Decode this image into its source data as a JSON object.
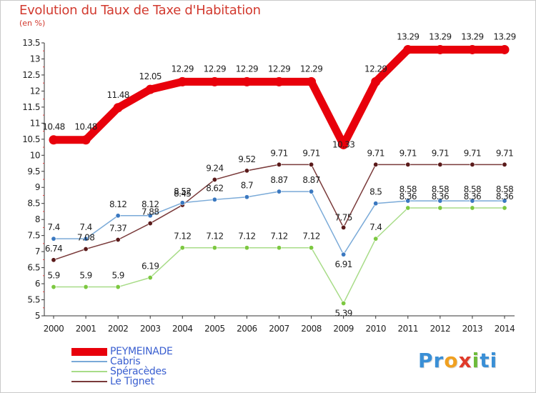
{
  "title": "Evolution du Taux de Taxe d'Habitation",
  "subtitle": "(en %)",
  "logo": {
    "text": "Proxiti",
    "parts": [
      {
        "text": "Pr",
        "color": "#3a8fd6"
      },
      {
        "text": "o",
        "color": "#f0a020"
      },
      {
        "text": "x",
        "color": "#e03a2a"
      },
      {
        "text": "i",
        "color": "#6dbb3a"
      },
      {
        "text": "ti",
        "color": "#3a8fd6"
      }
    ]
  },
  "chart_data": {
    "type": "line",
    "x": [
      "2000",
      "2001",
      "2002",
      "2003",
      "2004",
      "2005",
      "2006",
      "2007",
      "2008",
      "2009",
      "2010",
      "2011",
      "2012",
      "2013",
      "2014"
    ],
    "ylim": [
      5,
      13.5
    ],
    "yticks": [
      "5",
      "5.5",
      "6",
      "6.5",
      "7",
      "7.5",
      "8",
      "8.5",
      "9",
      "9.5",
      "10",
      "10.5",
      "11",
      "11.5",
      "12",
      "12.5",
      "13",
      "13.5"
    ],
    "grid": false,
    "legend_position": "bottom-left",
    "series": [
      {
        "name": "PEYMEINADE",
        "color": "#e8000b",
        "marker_color": "#e8000b",
        "values": [
          10.48,
          10.48,
          11.48,
          12.05,
          12.29,
          12.29,
          12.29,
          12.29,
          12.29,
          10.33,
          12.29,
          13.29,
          13.29,
          13.29,
          13.29
        ],
        "labels": [
          "10.48",
          "10.48",
          "11.48",
          "12.05",
          "12.29",
          "12.29",
          "12.29",
          "12.29",
          "12.29",
          "10.33",
          "12.29",
          "13.29",
          "13.29",
          "13.29",
          "13.29"
        ]
      },
      {
        "name": "Cabris",
        "color": "#7aaad8",
        "marker_color": "#3a78c0",
        "values": [
          7.4,
          7.4,
          8.12,
          8.12,
          8.52,
          8.62,
          8.7,
          8.87,
          8.87,
          6.91,
          8.5,
          8.58,
          8.58,
          8.58,
          8.58
        ],
        "labels": [
          "7.4",
          "7.4",
          "8.12",
          "8.12",
          "8.52",
          "8.62",
          "8.7",
          "8.87",
          "8.87",
          "6.91",
          "8.5",
          "8.58",
          "8.58",
          "8.58",
          "8.58"
        ]
      },
      {
        "name": "Spéracèdes",
        "color": "#a8dc88",
        "marker_color": "#7cc840",
        "values": [
          5.9,
          5.9,
          5.9,
          6.19,
          7.12,
          7.12,
          7.12,
          7.12,
          7.12,
          5.39,
          7.4,
          8.36,
          8.36,
          8.36,
          8.36
        ],
        "labels": [
          "5.9",
          "5.9",
          "5.9",
          "6.19",
          "7.12",
          "7.12",
          "7.12",
          "7.12",
          "7.12",
          "5.39",
          "7.4",
          "8.36",
          "8.36",
          "8.36",
          "8.36"
        ]
      },
      {
        "name": "Le Tignet",
        "color": "#7a3a3a",
        "marker_color": "#5a1a1a",
        "values": [
          6.74,
          7.08,
          7.37,
          7.88,
          8.45,
          9.24,
          9.52,
          9.71,
          9.71,
          7.75,
          9.71,
          9.71,
          9.71,
          9.71,
          9.71
        ],
        "labels": [
          "6.74",
          "7.08",
          "7.37",
          "7.88",
          "8.45",
          "9.24",
          "9.52",
          "9.71",
          "9.71",
          "7.75",
          "9.71",
          "9.71",
          "9.71",
          "9.71",
          "9.71"
        ]
      }
    ]
  }
}
